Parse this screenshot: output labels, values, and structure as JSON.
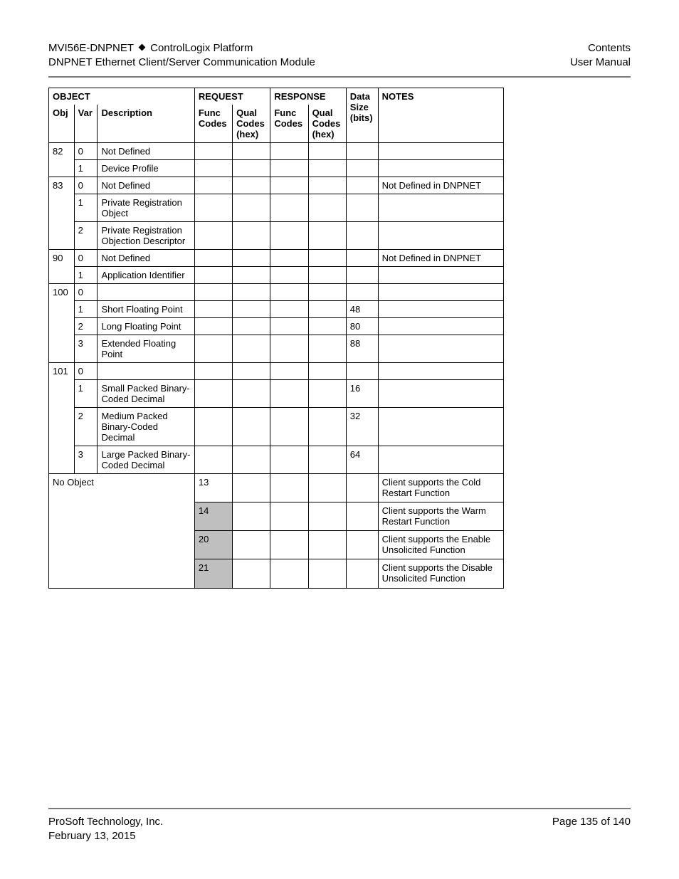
{
  "header": {
    "product": "MVI56E-DNPNET",
    "platform": "ControlLogix Platform",
    "module": "DNPNET Ethernet Client/Server Communication Module",
    "contents": "Contents",
    "manual": "User Manual"
  },
  "table": {
    "group_headers": {
      "object": "OBJECT",
      "request": "REQUEST",
      "response": "RESPONSE"
    },
    "col_headers": {
      "obj": "Obj",
      "var": "Var",
      "desc": "Description",
      "fc": "Func Codes",
      "qc": "Qual Codes (hex)",
      "fc2": "Func Codes",
      "qc2": "Qual Codes (hex)",
      "ds": "Data Size (bits)",
      "notes": "NOTES"
    },
    "rows": [
      {
        "obj": "82",
        "var": "0",
        "desc": "Not Defined",
        "fc1": "",
        "qc1": "",
        "fc2": "",
        "qc2": "",
        "ds": "",
        "notes": "",
        "obj_open_bottom": true
      },
      {
        "obj": "",
        "var": "1",
        "desc": "Device Profile",
        "fc1": "",
        "qc1": "",
        "fc2": "",
        "qc2": "",
        "ds": "",
        "notes": "",
        "obj_open_top": true
      },
      {
        "obj": "83",
        "var": "0",
        "desc": "Not Defined",
        "fc1": "",
        "qc1": "",
        "fc2": "",
        "qc2": "",
        "ds": "",
        "notes": "Not Defined in DNPNET",
        "obj_open_bottom": true
      },
      {
        "obj": "",
        "var": "1",
        "desc": "Private Registration Object",
        "fc1": "",
        "qc1": "",
        "fc2": "",
        "qc2": "",
        "ds": "",
        "notes": "",
        "obj_open_top": true,
        "obj_open_bottom": true
      },
      {
        "obj": "",
        "var": "2",
        "desc": "Private Registration Objection Descriptor",
        "fc1": "",
        "qc1": "",
        "fc2": "",
        "qc2": "",
        "ds": "",
        "notes": "",
        "obj_open_top": true
      },
      {
        "obj": "90",
        "var": "0",
        "desc": "Not Defined",
        "fc1": "",
        "qc1": "",
        "fc2": "",
        "qc2": "",
        "ds": "",
        "notes": "Not Defined in DNPNET",
        "obj_open_bottom": true
      },
      {
        "obj": "",
        "var": "1",
        "desc": "Application Identifier",
        "fc1": "",
        "qc1": "",
        "fc2": "",
        "qc2": "",
        "ds": "",
        "notes": "",
        "obj_open_top": true
      },
      {
        "obj": "100",
        "var": "0",
        "desc": "",
        "fc1": "",
        "qc1": "",
        "fc2": "",
        "qc2": "",
        "ds": "",
        "notes": "",
        "obj_open_bottom": true
      },
      {
        "obj": "",
        "var": "1",
        "desc": "Short Floating Point",
        "fc1": "",
        "qc1": "",
        "fc2": "",
        "qc2": "",
        "ds": "48",
        "notes": "",
        "obj_open_top": true,
        "obj_open_bottom": true
      },
      {
        "obj": "",
        "var": "2",
        "desc": "Long Floating Point",
        "fc1": "",
        "qc1": "",
        "fc2": "",
        "qc2": "",
        "ds": "80",
        "notes": "",
        "obj_open_top": true,
        "obj_open_bottom": true
      },
      {
        "obj": "",
        "var": "3",
        "desc": "Extended Floating Point",
        "fc1": "",
        "qc1": "",
        "fc2": "",
        "qc2": "",
        "ds": "88",
        "notes": "",
        "obj_open_top": true
      },
      {
        "obj": "101",
        "var": "0",
        "desc": "",
        "fc1": "",
        "qc1": "",
        "fc2": "",
        "qc2": "",
        "ds": "",
        "notes": "",
        "obj_open_bottom": true
      },
      {
        "obj": "",
        "var": "1",
        "desc": "Small Packed Binary-Coded Decimal",
        "fc1": "",
        "qc1": "",
        "fc2": "",
        "qc2": "",
        "ds": "16",
        "notes": "",
        "obj_open_top": true,
        "obj_open_bottom": true
      },
      {
        "obj": "",
        "var": "2",
        "desc": "Medium Packed Binary-Coded Decimal",
        "fc1": "",
        "qc1": "",
        "fc2": "",
        "qc2": "",
        "ds": "32",
        "notes": "",
        "obj_open_top": true,
        "obj_open_bottom": true
      },
      {
        "obj": "",
        "var": "3",
        "desc": "Large Packed Binary-Coded Decimal",
        "fc1": "",
        "qc1": "",
        "fc2": "",
        "qc2": "",
        "ds": "64",
        "notes": "",
        "obj_open_top": true
      }
    ],
    "no_object_label": "No Object",
    "no_object_rows": [
      {
        "fc1": "13",
        "notes": "Client supports the Cold Restart Function",
        "shaded": false
      },
      {
        "fc1": "14",
        "notes": "Client supports the Warm Restart Function",
        "shaded": true
      },
      {
        "fc1": "20",
        "notes": "Client supports the Enable Unsolicited Function",
        "shaded": true
      },
      {
        "fc1": "21",
        "notes": "Client supports the Disable Unsolicited Function",
        "shaded": true
      }
    ]
  },
  "footer": {
    "company": "ProSoft Technology, Inc.",
    "date": "February 13, 2015",
    "page": "Page 135 of 140"
  },
  "colors": {
    "shaded_bg": "#bfbfbf",
    "rule": "#7a7a7a",
    "text": "#000000",
    "bg": "#ffffff"
  }
}
